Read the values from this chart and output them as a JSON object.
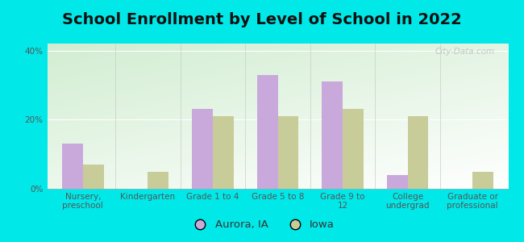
{
  "title": "School Enrollment by Level of School in 2022",
  "categories": [
    "Nursery,\npreschool",
    "Kindergarten",
    "Grade 1 to 4",
    "Grade 5 to 8",
    "Grade 9 to\n12",
    "College\nundergrad",
    "Graduate or\nprofessional"
  ],
  "aurora_values": [
    13.0,
    0.0,
    23.0,
    33.0,
    31.0,
    4.0,
    0.0
  ],
  "iowa_values": [
    7.0,
    5.0,
    21.0,
    21.0,
    23.0,
    21.0,
    5.0
  ],
  "aurora_color": "#c9a8dc",
  "iowa_color": "#c8cc99",
  "background_outer": "#00e8e8",
  "ylim": [
    0,
    42
  ],
  "yticks": [
    0,
    20,
    40
  ],
  "ytick_labels": [
    "0%",
    "20%",
    "40%"
  ],
  "bar_width": 0.32,
  "legend_aurora": "Aurora, IA",
  "legend_iowa": "Iowa",
  "watermark": "City-Data.com",
  "title_fontsize": 14,
  "tick_fontsize": 7.5,
  "legend_fontsize": 9.5
}
